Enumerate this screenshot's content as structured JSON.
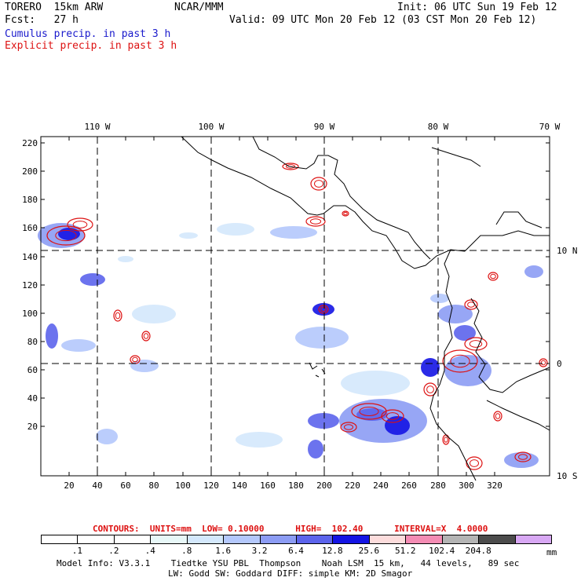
{
  "header": {
    "model": "TORERO  15km ARW",
    "center": "NCAR/MMM",
    "init": "Init: 06 UTC Sun 19 Feb 12",
    "fcst": "Fcst:   27 h",
    "valid": "Valid: 09 UTC Mon 20 Feb 12 (03 CST Mon 20 Feb 12)",
    "field1": "Cumulus precip. in past 3 h",
    "field2": "Explicit precip. in past 3 h"
  },
  "map": {
    "lon_labels": [
      "110 W",
      "100 W",
      "90 W",
      "80 W",
      "70 W"
    ],
    "lat_labels": [
      "10 N",
      "0",
      "10 S"
    ],
    "y_ticks": [
      "220",
      "200",
      "180",
      "160",
      "140",
      "120",
      "100",
      "80",
      "60",
      "40",
      "20"
    ],
    "x_ticks": [
      "20",
      "40",
      "60",
      "80",
      "100",
      "120",
      "140",
      "160",
      "180",
      "200",
      "220",
      "240",
      "260",
      "280",
      "300",
      "320"
    ],
    "colors": {
      "cumulus": "#2233ee",
      "explicit": "#dd1111",
      "coast": "#000000"
    }
  },
  "contours": {
    "text": "CONTOURS:  UNITS=mm  LOW= 0.10000      HIGH=  102.40      INTERVAL=X  4.0000"
  },
  "colorbar": {
    "colors": [
      "#ffffff",
      "#ffffff",
      "#ffffff",
      "#e8f8f8",
      "#d4e8fc",
      "#b4c8fc",
      "#8c9cf4",
      "#5c64ec",
      "#1414e4",
      "#fcdcdc",
      "#f48cb4",
      "#b4b4b4",
      "#4c4c4c",
      "#d8a8f4"
    ],
    "labels": [
      ".1",
      ".2",
      ".4",
      ".8",
      "1.6",
      "3.2",
      "6.4",
      "12.8",
      "25.6",
      "51.2",
      "102.4",
      "204.8"
    ],
    "units": "mm"
  },
  "footer": {
    "line1": "Model Info: V3.3.1    Tiedtke YSU PBL  Thompson    Noah LSM  15 km,   44 levels,   89 sec",
    "line2": "LW: Godd SW: Goddard DIFF: simple KM: 2D Smagor"
  }
}
